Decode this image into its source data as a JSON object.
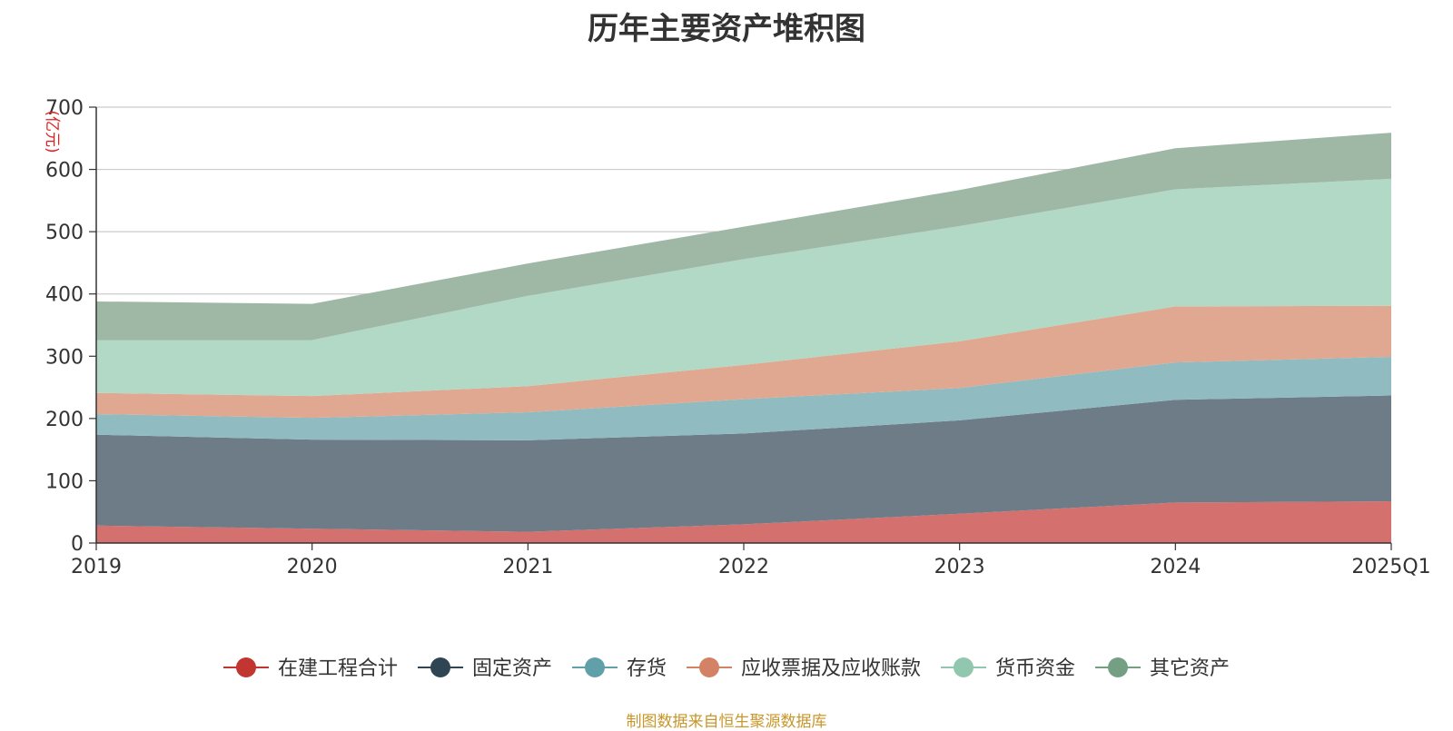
{
  "page": {
    "source_note": "制图数据来自恒生聚源数据库"
  },
  "chart_data": {
    "type": "area",
    "stacked": true,
    "title": "历年主要资产堆积图",
    "unit_label": "(亿元)",
    "categories": [
      "2019",
      "2020",
      "2021",
      "2022",
      "2023",
      "2024",
      "2025Q1"
    ],
    "ylim": [
      0,
      700
    ],
    "yticks": [
      0,
      100,
      200,
      300,
      400,
      500,
      600,
      700
    ],
    "grid": true,
    "legend_position": "bottom",
    "series": [
      {
        "name": "在建工程合计",
        "color": "#c23531",
        "fill": "#d4706e",
        "values": [
          28,
          23,
          18,
          30,
          47,
          65,
          67
        ]
      },
      {
        "name": "固定资产",
        "color": "#2f4554",
        "fill": "#6e7c88",
        "values": [
          146,
          143,
          147,
          146,
          150,
          165,
          170
        ]
      },
      {
        "name": "存货",
        "color": "#61a0a8",
        "fill": "#90bbc1",
        "values": [
          33,
          35,
          45,
          55,
          52,
          60,
          62
        ]
      },
      {
        "name": "应收票据及应收账款",
        "color": "#d48265",
        "fill": "#e0a891",
        "values": [
          34,
          35,
          42,
          55,
          75,
          90,
          82
        ]
      },
      {
        "name": "货币资金",
        "color": "#91c7ae",
        "fill": "#b1d9c6",
        "values": [
          85,
          90,
          145,
          170,
          185,
          188,
          204
        ]
      },
      {
        "name": "其它资产",
        "color": "#749f83",
        "fill": "#9fb8a6",
        "values": [
          62,
          58,
          52,
          52,
          58,
          66,
          74
        ]
      }
    ]
  }
}
